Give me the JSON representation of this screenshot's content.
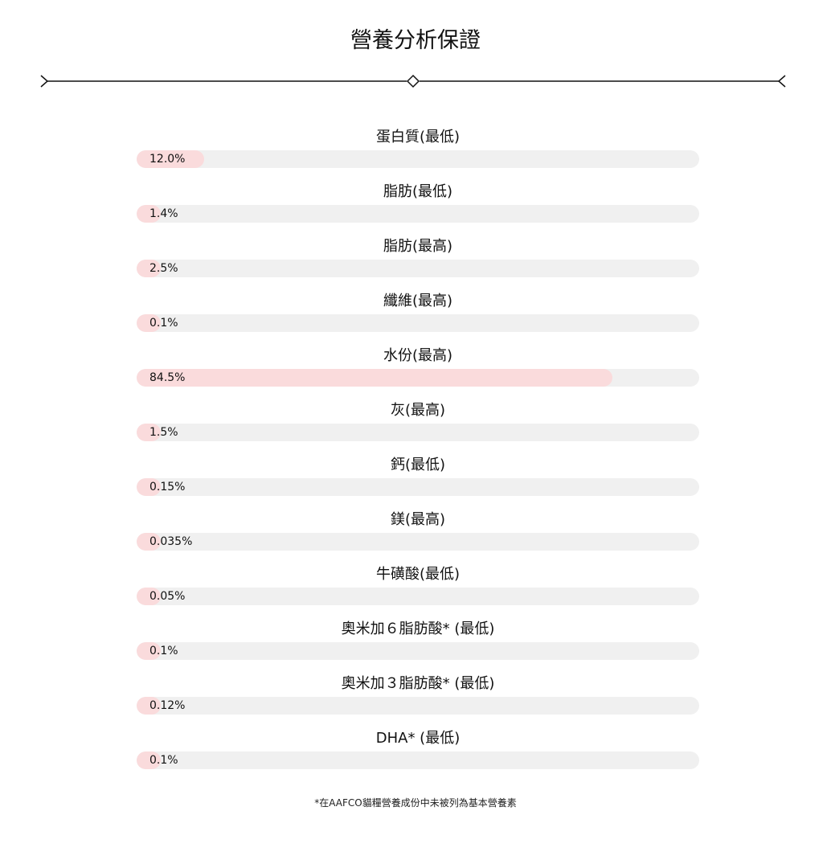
{
  "title": "營養分析保證",
  "accent_color": "#fadbdc",
  "track_color": "#f0f0f0",
  "items": [
    {
      "label": "蛋白質(最低)",
      "value": "12.0%",
      "percent": 12.0
    },
    {
      "label": "脂肪(最低)",
      "value": "1.4%",
      "percent": 1.4
    },
    {
      "label": "脂肪(最高)",
      "value": "2.5%",
      "percent": 2.5
    },
    {
      "label": "纖維(最高)",
      "value": "0.1%",
      "percent": 0.1
    },
    {
      "label": "水份(最高)",
      "value": "84.5%",
      "percent": 84.5
    },
    {
      "label": "灰(最高)",
      "value": "1.5%",
      "percent": 1.5
    },
    {
      "label": "鈣(最低)",
      "value": "0.15%",
      "percent": 0.15
    },
    {
      "label": "鎂(最高)",
      "value": "0.035%",
      "percent": 0.035
    },
    {
      "label": "牛磺酸(最低)",
      "value": "0.05%",
      "percent": 0.05
    },
    {
      "label": "奧米加６脂肪酸* (最低)",
      "value": "0.1%",
      "percent": 0.1
    },
    {
      "label": "奧米加３脂肪酸* (最低)",
      "value": "0.12%",
      "percent": 0.12
    },
    {
      "label": "DHA* (最低)",
      "value": "0.1%",
      "percent": 0.1
    }
  ],
  "footnote": "*在AAFCO貓糧營養成份中未被列為基本營養素"
}
